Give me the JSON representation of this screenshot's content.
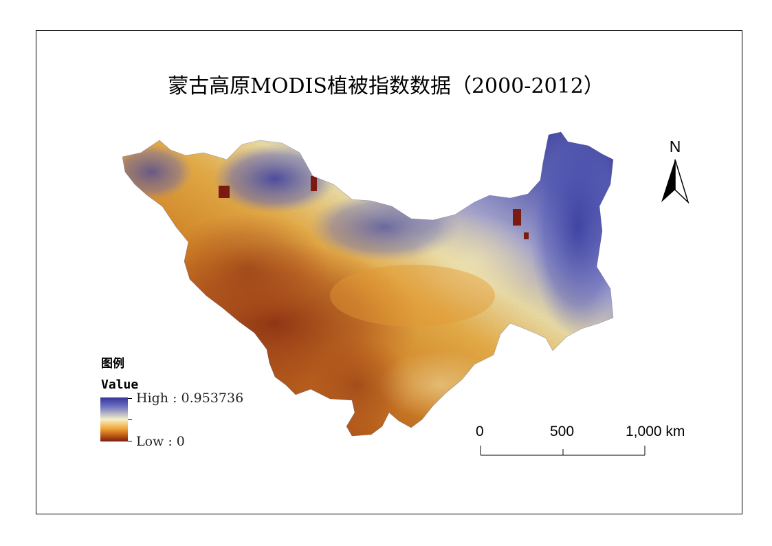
{
  "title": "蒙古高原MODIS植被指数数据（2000-2012）",
  "legend": {
    "heading": "图例",
    "field": "Value",
    "high_label": "High : 0.953736",
    "low_label": "Low : 0",
    "high_value": 0.953736,
    "low_value": 0,
    "ramp_colors": [
      "#353599",
      "#6b6fc0",
      "#f4f0c8",
      "#f2a83a",
      "#c56018",
      "#7a1e10"
    ]
  },
  "scale_bar": {
    "labels": [
      "0",
      "500",
      "1,000 km"
    ],
    "values_km": [
      0,
      500,
      1000
    ]
  },
  "north_arrow": {
    "letter": "N",
    "icon": "north-arrow-icon"
  },
  "colors": {
    "frame": "#000000",
    "high": "#353599",
    "mid": "#f4f0c8",
    "low": "#7a1e10"
  }
}
